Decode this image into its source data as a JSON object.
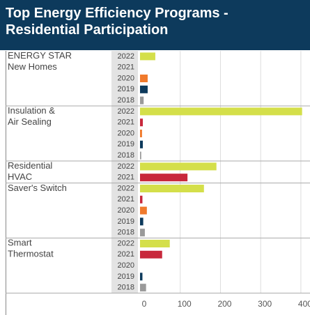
{
  "chart_data": {
    "type": "bar",
    "orientation": "horizontal",
    "title": "Top Energy Efficiency Programs - Residential Participation",
    "colors": {
      "2022": "#d4df4a",
      "2021": "#c8283c",
      "2020": "#f07a2c",
      "2019": "#0d3a5c",
      "2018": "#9a9a9a"
    },
    "groups": [
      {
        "name": "ENERGY STAR New Homes",
        "years": [
          "2022",
          "2021",
          "2020",
          "2019",
          "2018"
        ],
        "values": [
          38,
          null,
          19,
          19,
          9
        ]
      },
      {
        "name": "Insulation & Air Sealing",
        "years": [
          "2022",
          "2021",
          "2020",
          "2019",
          "2018"
        ],
        "values": [
          403,
          7,
          5,
          7,
          3
        ]
      },
      {
        "name": "Residential HVAC",
        "years": [
          "2022",
          "2021"
        ],
        "values": [
          190,
          118
        ]
      },
      {
        "name": "Saver's Switch",
        "years": [
          "2022",
          "2021",
          "2020",
          "2019",
          "2018"
        ],
        "values": [
          159,
          6,
          17,
          8,
          12
        ]
      },
      {
        "name": "Smart Thermostat",
        "years": [
          "2022",
          "2021",
          "2020",
          "2019",
          "2018"
        ],
        "values": [
          74,
          55,
          null,
          6,
          15
        ]
      }
    ],
    "xlim": [
      0,
      414
    ],
    "xticks": [
      0,
      100,
      200,
      300,
      400
    ],
    "grid": true
  }
}
